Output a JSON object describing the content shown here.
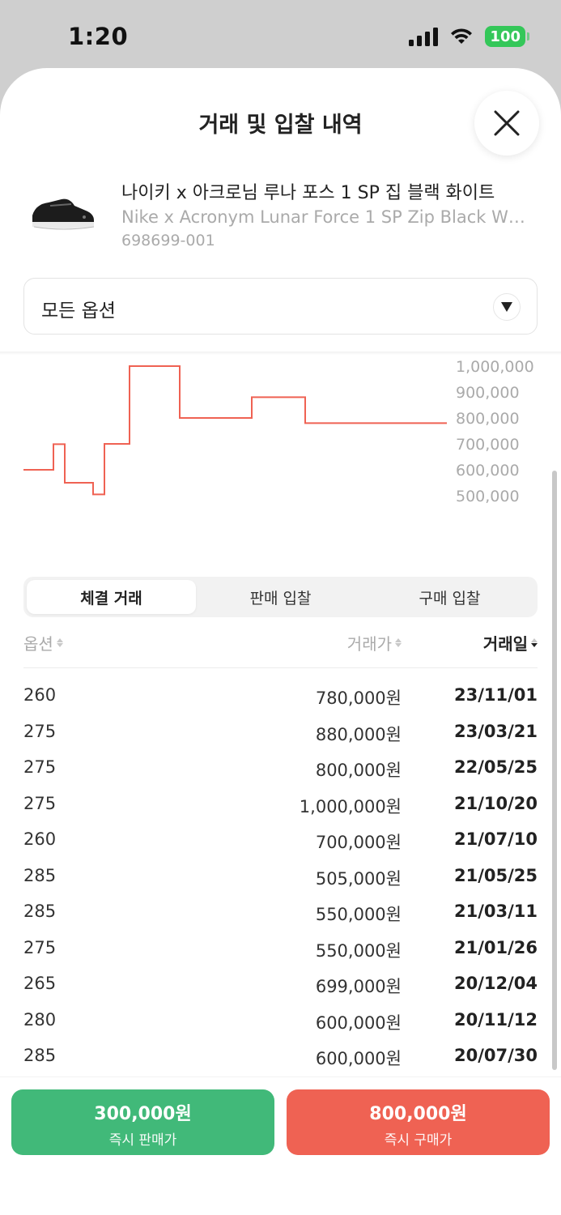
{
  "status_bar": {
    "time": "1:20",
    "battery": "100"
  },
  "sheet": {
    "title": "거래 및 입찰 내역"
  },
  "product": {
    "name_ko": "나이키 x 아크로님 루나 포스 1 SP 집 블랙 화이트",
    "name_en": "Nike x Acronym Lunar Force 1 SP Zip Black White",
    "code": "698699-001"
  },
  "option_select": {
    "value": "모든 옵션"
  },
  "chart_data": {
    "type": "line",
    "step": true,
    "y_ticks": [
      "1,000,000",
      "900,000",
      "800,000",
      "700,000",
      "600,000",
      "500,000"
    ],
    "y_tick_values": [
      1000000,
      900000,
      800000,
      700000,
      600000,
      500000
    ],
    "ylim": [
      500000,
      1000000
    ],
    "values": [
      600000,
      699000,
      550000,
      505000,
      700000,
      1000000,
      800000,
      880000,
      780000
    ],
    "line_color": "#ef6253"
  },
  "tabs": [
    {
      "label": "체결 거래",
      "active": true
    },
    {
      "label": "판매 입찰",
      "active": false
    },
    {
      "label": "구매 입찰",
      "active": false
    }
  ],
  "table": {
    "columns": {
      "option": "옵션",
      "price": "거래가",
      "date": "거래일"
    },
    "rows": [
      {
        "size": "260",
        "price": "780,000원",
        "date": "23/11/01"
      },
      {
        "size": "275",
        "price": "880,000원",
        "date": "23/03/21"
      },
      {
        "size": "275",
        "price": "800,000원",
        "date": "22/05/25"
      },
      {
        "size": "275",
        "price": "1,000,000원",
        "date": "21/10/20"
      },
      {
        "size": "260",
        "price": "700,000원",
        "date": "21/07/10"
      },
      {
        "size": "285",
        "price": "505,000원",
        "date": "21/05/25"
      },
      {
        "size": "285",
        "price": "550,000원",
        "date": "21/03/11"
      },
      {
        "size": "275",
        "price": "550,000원",
        "date": "21/01/26"
      },
      {
        "size": "265",
        "price": "699,000원",
        "date": "20/12/04"
      },
      {
        "size": "280",
        "price": "600,000원",
        "date": "20/11/12"
      },
      {
        "size": "285",
        "price": "600,000원",
        "date": "20/07/30"
      }
    ]
  },
  "buttons": {
    "sell": {
      "price": "300,000원",
      "label": "즉시 판매가",
      "color": "#41b979"
    },
    "buy": {
      "price": "800,000원",
      "label": "즉시 구매가",
      "color": "#ef6253"
    }
  }
}
